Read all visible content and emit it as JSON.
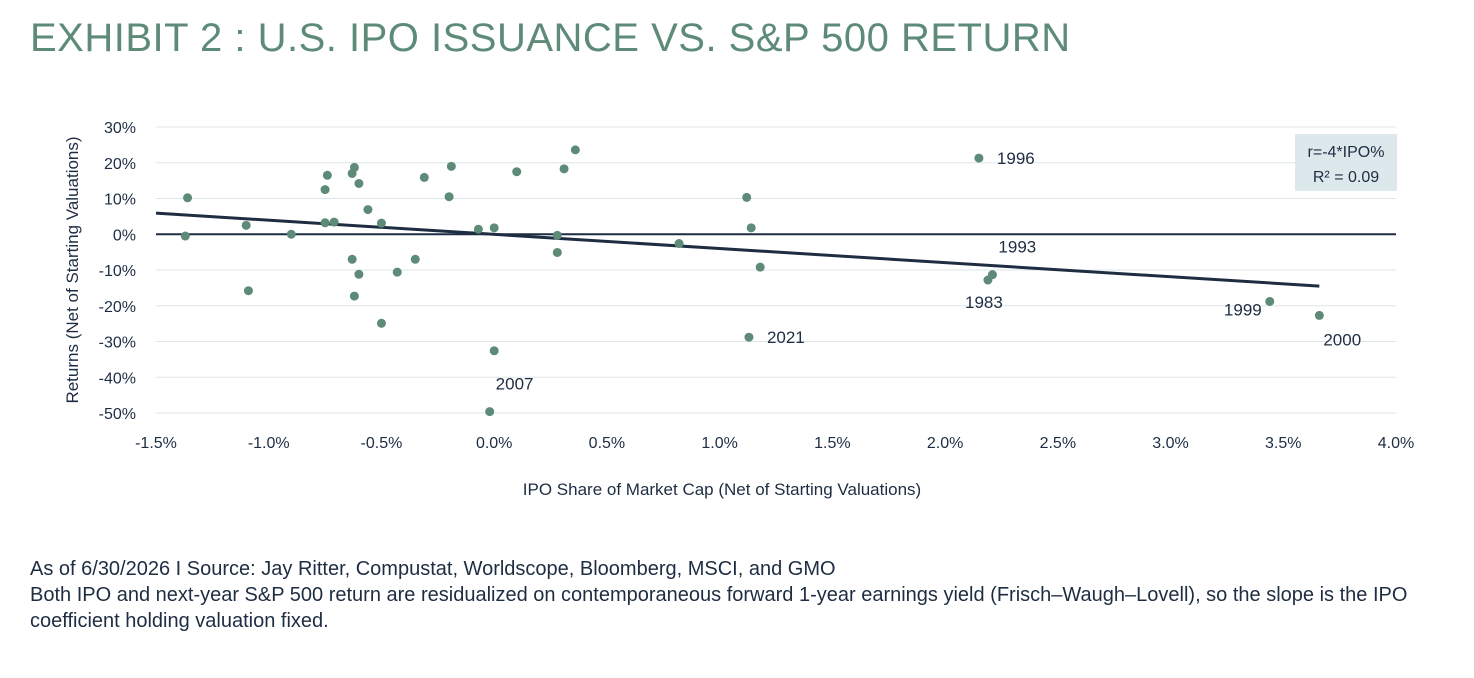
{
  "title": "EXHIBIT 2 : U.S. IPO ISSUANCE VS. S&P 500 RETURN",
  "colors": {
    "title": "#5e8a78",
    "points": "#5e8a78",
    "trend": "#1e2d42",
    "grid": "#dde6ea",
    "zero_line": "#1e2d42",
    "box_fill": "#dce8ec"
  },
  "chart_data": {
    "type": "scatter",
    "xlabel": "IPO Share of Market Cap (Net of Starting Valuations)",
    "ylabel": "Returns (Net of Starting Valuations)",
    "xlim": [
      -1.5,
      4.0
    ],
    "ylim": [
      -50,
      30
    ],
    "x_ticks": [
      -1.5,
      -1.0,
      -0.5,
      0.0,
      0.5,
      1.0,
      1.5,
      2.0,
      2.5,
      3.0,
      3.5,
      4.0
    ],
    "x_tick_labels": [
      "-1.5%",
      "-1.0%",
      "-0.5%",
      "0.0%",
      "0.5%",
      "1.0%",
      "1.5%",
      "2.0%",
      "2.5%",
      "3.0%",
      "3.5%",
      "4.0%"
    ],
    "y_ticks": [
      30,
      20,
      10,
      0,
      -10,
      -20,
      -30,
      -40,
      -50
    ],
    "y_tick_labels": [
      "30%",
      "20%",
      "10%",
      "0%",
      "-10%",
      "-20%",
      "-30%",
      "-40%",
      "-50%"
    ],
    "grid": "horizontal",
    "points": [
      {
        "x": -1.36,
        "y": 10.2
      },
      {
        "x": -1.37,
        "y": -0.5
      },
      {
        "x": -1.1,
        "y": 2.5
      },
      {
        "x": -1.09,
        "y": -15.8
      },
      {
        "x": -0.9,
        "y": 0.0
      },
      {
        "x": -0.75,
        "y": 12.5
      },
      {
        "x": -0.74,
        "y": 16.5
      },
      {
        "x": -0.75,
        "y": 3.2
      },
      {
        "x": -0.71,
        "y": 3.4
      },
      {
        "x": -0.63,
        "y": 17.0
      },
      {
        "x": -0.62,
        "y": 18.7
      },
      {
        "x": -0.6,
        "y": 14.2
      },
      {
        "x": -0.63,
        "y": -7.0
      },
      {
        "x": -0.6,
        "y": -11.2
      },
      {
        "x": -0.62,
        "y": -17.3
      },
      {
        "x": -0.56,
        "y": 6.9
      },
      {
        "x": -0.5,
        "y": 3.1
      },
      {
        "x": -0.5,
        "y": -24.9
      },
      {
        "x": -0.43,
        "y": -10.6
      },
      {
        "x": -0.35,
        "y": -7.0
      },
      {
        "x": -0.31,
        "y": 15.9
      },
      {
        "x": -0.2,
        "y": 10.5
      },
      {
        "x": -0.19,
        "y": 19.0
      },
      {
        "x": -0.07,
        "y": 1.4
      },
      {
        "x": 0.0,
        "y": 1.8
      },
      {
        "x": 0.0,
        "y": -32.6
      },
      {
        "x": -0.02,
        "y": -49.6
      },
      {
        "x": 0.1,
        "y": 17.5
      },
      {
        "x": 0.28,
        "y": -0.3
      },
      {
        "x": 0.28,
        "y": -5.1
      },
      {
        "x": 0.31,
        "y": 18.3
      },
      {
        "x": 0.36,
        "y": 23.6
      },
      {
        "x": 0.82,
        "y": -2.6
      },
      {
        "x": 1.12,
        "y": 10.3
      },
      {
        "x": 1.14,
        "y": 1.8
      },
      {
        "x": 1.18,
        "y": -9.2
      },
      {
        "x": 1.13,
        "y": -28.8
      },
      {
        "x": 2.15,
        "y": 21.3
      },
      {
        "x": 2.19,
        "y": -12.8
      },
      {
        "x": 2.21,
        "y": -11.3
      },
      {
        "x": 3.44,
        "y": -18.8
      },
      {
        "x": 3.66,
        "y": -22.7
      }
    ],
    "annotations": [
      {
        "label": "1996",
        "x": 2.15,
        "y": 21.3,
        "pos": "right"
      },
      {
        "label": "1993",
        "x": 2.21,
        "y": -11.3,
        "pos": "above-right"
      },
      {
        "label": "1983",
        "x": 2.19,
        "y": -12.8,
        "pos": "below"
      },
      {
        "label": "1999",
        "x": 3.44,
        "y": -18.8,
        "pos": "left"
      },
      {
        "label": "2000",
        "x": 3.66,
        "y": -22.7,
        "pos": "below-right"
      },
      {
        "label": "2021",
        "x": 1.13,
        "y": -28.8,
        "pos": "right"
      },
      {
        "label": "2007",
        "x": -0.02,
        "y": -49.6,
        "pos": "above-right"
      }
    ],
    "trendline": {
      "x": [
        -1.5,
        3.66
      ],
      "y": [
        5.9,
        -14.5
      ]
    },
    "regression_box": {
      "line1": "r=-4*IPO%",
      "line2": "R² = 0.09",
      "placement": "top-right"
    }
  },
  "footer": {
    "source": "As of 6/30/2026 I Source: Jay Ritter, Compustat, Worldscope, Bloomberg, MSCI, and GMO",
    "note": "Both IPO and next-year S&P 500 return are residualized on contemporaneous forward 1-year earnings yield (Frisch–Waugh–Lovell), so the slope is the IPO coefficient holding valuation fixed."
  }
}
